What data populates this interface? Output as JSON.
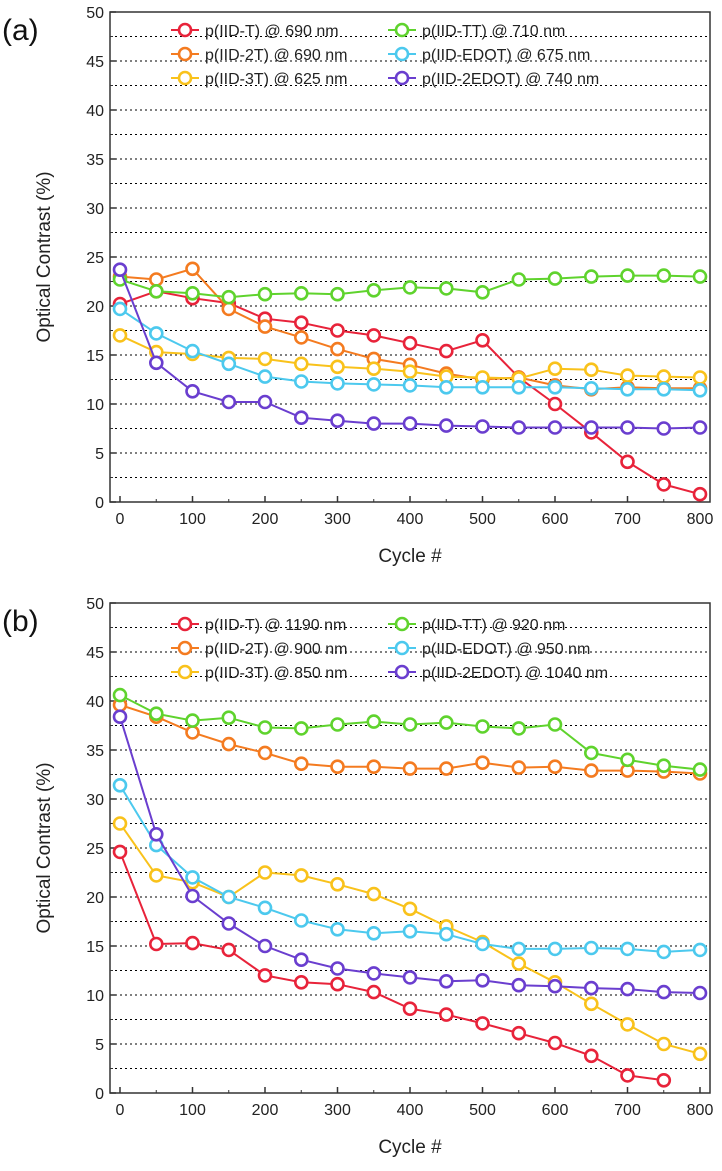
{
  "chart_data": [
    {
      "panel": "(a)",
      "type": "line",
      "xlabel": "Cycle #",
      "ylabel": "Optical Contrast (%)",
      "xlim": [
        0,
        800
      ],
      "ylim": [
        0,
        50
      ],
      "xticks": [
        0,
        100,
        200,
        300,
        400,
        500,
        600,
        700,
        800
      ],
      "yticks": [
        0,
        5,
        10,
        15,
        20,
        25,
        30,
        35,
        40,
        45,
        50
      ],
      "grid": "dotted horizontal",
      "legend_placement": "top",
      "x": [
        0,
        50,
        100,
        150,
        200,
        250,
        300,
        350,
        400,
        450,
        500,
        550,
        600,
        650,
        700,
        750,
        800
      ],
      "series": [
        {
          "name": "p(IID-T) @ 690 nm",
          "color": "#e8233a",
          "values": [
            20.2,
            21.5,
            20.8,
            20.3,
            18.7,
            18.3,
            17.5,
            17.0,
            16.2,
            15.4,
            16.5,
            12.7,
            10.0,
            7.1,
            4.1,
            1.8,
            0.8
          ]
        },
        {
          "name": "p(IID-2T) @ 690 nm",
          "color": "#f47b20",
          "values": [
            23.0,
            22.7,
            23.8,
            19.7,
            17.9,
            16.8,
            15.6,
            14.6,
            14.0,
            13.1,
            12.5,
            12.7,
            11.9,
            11.5,
            11.7,
            11.6,
            11.6
          ]
        },
        {
          "name": "p(IID-3T) @ 625 nm",
          "color": "#f9c21b",
          "values": [
            17.0,
            15.3,
            15.1,
            14.7,
            14.6,
            14.1,
            13.8,
            13.6,
            13.3,
            12.8,
            12.7,
            12.6,
            13.6,
            13.5,
            12.9,
            12.8,
            12.7
          ]
        },
        {
          "name": "p(IID-TT) @ 710 nm",
          "color": "#5fd32d",
          "values": [
            22.7,
            21.5,
            21.3,
            20.9,
            21.2,
            21.3,
            21.2,
            21.6,
            21.9,
            21.8,
            21.4,
            22.7,
            22.8,
            23.0,
            23.1,
            23.1,
            23.0
          ]
        },
        {
          "name": "p(IID-EDOT) @ 675 nm",
          "color": "#4cc9ee",
          "values": [
            19.7,
            17.2,
            15.4,
            14.1,
            12.8,
            12.3,
            12.1,
            12.0,
            11.9,
            11.7,
            11.7,
            11.7,
            11.7,
            11.6,
            11.5,
            11.5,
            11.4
          ]
        },
        {
          "name": "p(IID-2EDOT) @ 740 nm",
          "color": "#6a3ecf",
          "values": [
            23.7,
            14.2,
            11.3,
            10.2,
            10.2,
            8.6,
            8.3,
            8.0,
            8.0,
            7.8,
            7.7,
            7.6,
            7.6,
            7.6,
            7.6,
            7.5,
            7.6
          ]
        }
      ]
    },
    {
      "panel": "(b)",
      "type": "line",
      "xlabel": "Cycle #",
      "ylabel": "Optical Contrast (%)",
      "xlim": [
        0,
        800
      ],
      "ylim": [
        0,
        50
      ],
      "xticks": [
        0,
        100,
        200,
        300,
        400,
        500,
        600,
        700,
        800
      ],
      "yticks": [
        0,
        5,
        10,
        15,
        20,
        25,
        30,
        35,
        40,
        45,
        50
      ],
      "grid": "dotted horizontal",
      "legend_placement": "top",
      "x": [
        0,
        50,
        100,
        150,
        200,
        250,
        300,
        350,
        400,
        450,
        500,
        550,
        600,
        650,
        700,
        750,
        800
      ],
      "series": [
        {
          "name": "p(IID-T) @ 1190 nm",
          "color": "#e8233a",
          "values": [
            24.6,
            15.2,
            15.3,
            14.6,
            12.0,
            11.3,
            11.1,
            10.3,
            8.6,
            8.0,
            7.1,
            6.1,
            5.1,
            3.8,
            1.8,
            1.3,
            null
          ]
        },
        {
          "name": "p(IID-2T) @ 900 nm",
          "color": "#f47b20",
          "values": [
            39.6,
            38.4,
            36.8,
            35.6,
            34.7,
            33.6,
            33.3,
            33.3,
            33.1,
            33.1,
            33.7,
            33.2,
            33.3,
            32.9,
            32.9,
            32.8,
            32.6
          ]
        },
        {
          "name": "p(IID-3T) @ 850 nm",
          "color": "#f9c21b",
          "values": [
            27.5,
            22.2,
            21.5,
            20.0,
            22.5,
            22.2,
            21.3,
            20.3,
            18.8,
            17.0,
            15.4,
            13.2,
            11.3,
            9.1,
            7.0,
            5.0,
            4.0
          ]
        },
        {
          "name": "p(IID-TT) @ 920 nm",
          "color": "#5fd32d",
          "values": [
            40.6,
            38.7,
            38.0,
            38.3,
            37.3,
            37.2,
            37.6,
            37.9,
            37.6,
            37.8,
            37.4,
            37.2,
            37.6,
            34.7,
            34.0,
            33.4,
            33.0
          ]
        },
        {
          "name": "p(IID-EDOT) @ 950 nm",
          "color": "#4cc9ee",
          "values": [
            31.4,
            25.3,
            22.0,
            20.0,
            18.9,
            17.6,
            16.7,
            16.3,
            16.5,
            16.2,
            15.2,
            14.7,
            14.7,
            14.8,
            14.7,
            14.4,
            14.6
          ]
        },
        {
          "name": "p(IID-2EDOT) @ 1040 nm",
          "color": "#6a3ecf",
          "values": [
            38.4,
            26.4,
            20.1,
            17.3,
            15.0,
            13.6,
            12.7,
            12.2,
            11.8,
            11.4,
            11.5,
            11.0,
            10.9,
            10.7,
            10.6,
            10.3,
            10.2
          ]
        }
      ]
    }
  ]
}
